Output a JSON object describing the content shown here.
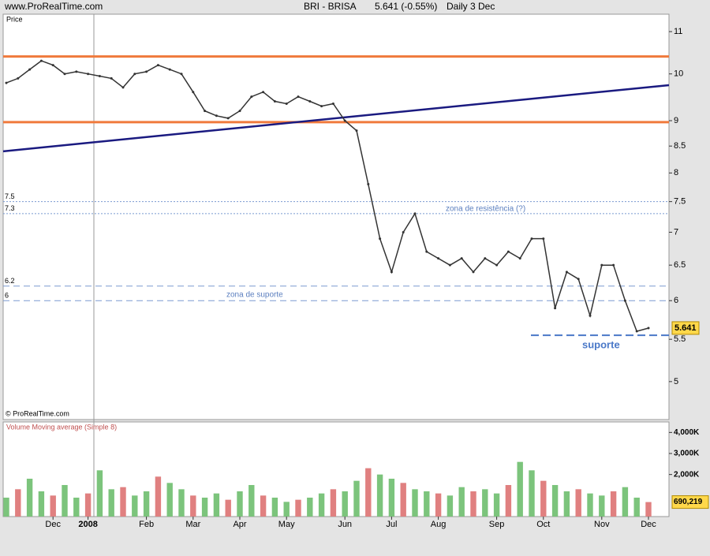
{
  "site": "www.ProRealTime.com",
  "header": {
    "instrument": "BRI - BRISA",
    "quote": "5.641 (-0.55%)",
    "period": "Daily  3 Dec"
  },
  "copyright": "© ProRealTime.com",
  "chart_data": [
    {
      "type": "line",
      "ylabel": "Price",
      "log_scale": true,
      "color": "#333333",
      "categories": [
        null,
        null,
        null,
        null,
        "Dec",
        null,
        null,
        "2008",
        null,
        null,
        null,
        null,
        "Feb",
        null,
        null,
        null,
        "Mar",
        null,
        null,
        null,
        "Apr",
        null,
        null,
        null,
        "May",
        null,
        null,
        null,
        null,
        "Jun",
        null,
        null,
        null,
        "Jul",
        null,
        null,
        null,
        "Aug",
        null,
        null,
        null,
        null,
        "Sep",
        null,
        null,
        null,
        "Oct",
        null,
        null,
        null,
        null,
        "Nov",
        null,
        null,
        null,
        "Dec"
      ],
      "values": [
        9.8,
        9.9,
        10.1,
        10.3,
        10.2,
        10.0,
        10.05,
        10.0,
        9.95,
        9.9,
        9.7,
        10.0,
        10.05,
        10.2,
        10.1,
        10.0,
        9.6,
        9.2,
        9.1,
        9.05,
        9.2,
        9.5,
        9.6,
        9.4,
        9.35,
        9.5,
        9.4,
        9.3,
        9.35,
        9.0,
        8.8,
        7.8,
        6.9,
        6.4,
        7.0,
        7.3,
        6.7,
        6.6,
        6.5,
        6.6,
        6.4,
        6.6,
        6.5,
        6.7,
        6.6,
        6.9,
        6.9,
        5.9,
        6.4,
        6.3,
        5.8,
        6.5,
        6.5,
        6.0,
        5.6,
        5.641
      ],
      "last_label": "5.641",
      "ylim": [
        4.59,
        11.44
      ],
      "yticks": [
        5,
        5.5,
        6,
        6.5,
        7,
        7.5,
        8,
        8.5,
        9,
        10,
        11
      ],
      "hlines": [
        {
          "value": 10.4,
          "color": "#f07a3c",
          "style": "solid",
          "show_value": false
        },
        {
          "value": 8.97,
          "color": "#f07a3c",
          "style": "solid",
          "show_value": false
        },
        {
          "value": 7.5,
          "color": "#7a9ad0",
          "style": "dotted",
          "show_value": true
        },
        {
          "value": 7.3,
          "color": "#7a9ad0",
          "style": "dotted",
          "show_value": true
        },
        {
          "value": 6.2,
          "color": "#7a9ad0",
          "style": "dashed",
          "show_value": true
        },
        {
          "value": 6,
          "color": "#7a9ad0",
          "style": "dashed",
          "show_value": true
        },
        {
          "value": 5.55,
          "color": "#4a78c8",
          "style": "support",
          "show_value": false
        }
      ],
      "trendline": {
        "from": 8.4,
        "to": 9.75,
        "color": "#1a1a80"
      },
      "annotations": [
        "zona de resistência (?)",
        "zona de suporte",
        "suporte"
      ]
    },
    {
      "type": "bar",
      "title": "Volume Moving average (Simple 8)",
      "color": "#7cc47c",
      "values": [
        900000,
        1300000,
        1800000,
        1200000,
        1000000,
        1500000,
        900000,
        1100000,
        2200000,
        1300000,
        1400000,
        1000000,
        1200000,
        1900000,
        1600000,
        1300000,
        1000000,
        900000,
        1100000,
        800000,
        1200000,
        1500000,
        1000000,
        900000,
        700000,
        800000,
        900000,
        1100000,
        1300000,
        1200000,
        1700000,
        2300000,
        2000000,
        1800000,
        1600000,
        1300000,
        1200000,
        1100000,
        1000000,
        1400000,
        1200000,
        1300000,
        1100000,
        1500000,
        2600000,
        2200000,
        1700000,
        1500000,
        1200000,
        1300000,
        1100000,
        1000000,
        1200000,
        1400000,
        900000,
        690219
      ],
      "last_label": "690,219",
      "ylim": [
        0,
        4500000
      ],
      "yticks": [
        {
          "value": 2000000,
          "label": "2,000K"
        },
        {
          "value": 3000000,
          "label": "3,000K"
        },
        {
          "value": 4000000,
          "label": "4,000K"
        }
      ]
    }
  ]
}
